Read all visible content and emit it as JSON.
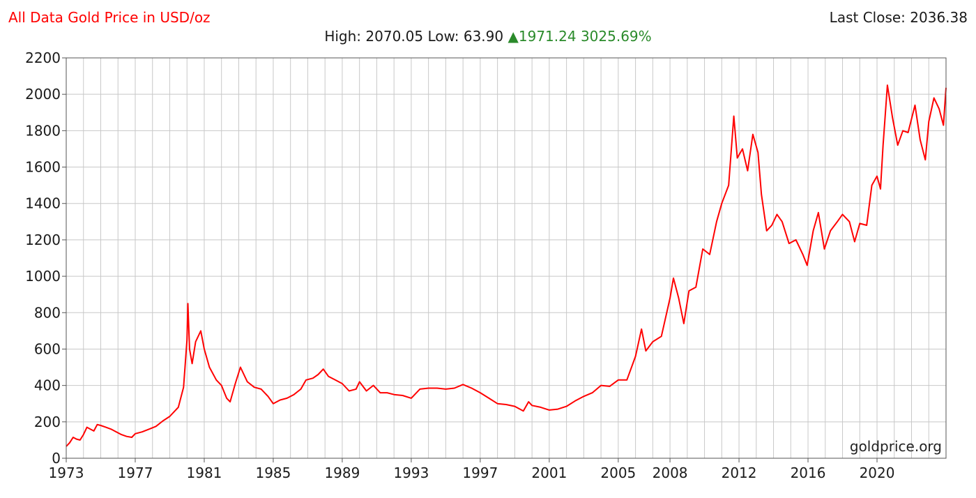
{
  "header": {
    "title": "All Data Gold Price in USD/oz",
    "last_close_label": "Last Close:",
    "last_close_value": "2036.38",
    "high_label": "High:",
    "high_value": "2070.05",
    "low_label": "Low:",
    "low_value": "63.90",
    "change_value": "1971.24",
    "change_percent": "3025.69%"
  },
  "colors": {
    "line": "#ff0000",
    "title": "#ff0000",
    "change": "#2a8a2a",
    "grid": "#c8c8c8",
    "axis": "#555555"
  },
  "chart_data": {
    "type": "line",
    "title": "All Data Gold Price in USD/oz",
    "xlabel": "",
    "ylabel": "",
    "xlim": [
      1973,
      2024
    ],
    "ylim": [
      0,
      2200
    ],
    "grid": true,
    "yticks": [
      0,
      200,
      400,
      600,
      800,
      1000,
      1200,
      1400,
      1600,
      1800,
      2000,
      2200
    ],
    "xtick_labels": [
      {
        "value": 1973,
        "label": "1973"
      },
      {
        "value": 1977,
        "label": "1977"
      },
      {
        "value": 1981,
        "label": "1981"
      },
      {
        "value": 1985,
        "label": "1985"
      },
      {
        "value": 1989,
        "label": "1989"
      },
      {
        "value": 1993,
        "label": "1993"
      },
      {
        "value": 1997,
        "label": "1997"
      },
      {
        "value": 2001,
        "label": "2001"
      },
      {
        "value": 2005,
        "label": "2005"
      },
      {
        "value": 2008,
        "label": "2008"
      },
      {
        "value": 2012,
        "label": "2012"
      },
      {
        "value": 2016,
        "label": "2016"
      },
      {
        "value": 2020,
        "label": "2020"
      }
    ],
    "watermark": "goldprice.org",
    "series": [
      {
        "values": [
          [
            1973.0,
            65
          ],
          [
            1973.2,
            85
          ],
          [
            1973.4,
            115
          ],
          [
            1973.6,
            105
          ],
          [
            1973.8,
            100
          ],
          [
            1974.0,
            130
          ],
          [
            1974.2,
            170
          ],
          [
            1974.4,
            160
          ],
          [
            1974.6,
            150
          ],
          [
            1974.8,
            185
          ],
          [
            1975.0,
            180
          ],
          [
            1975.3,
            170
          ],
          [
            1975.6,
            160
          ],
          [
            1975.9,
            145
          ],
          [
            1976.2,
            130
          ],
          [
            1976.5,
            120
          ],
          [
            1976.8,
            115
          ],
          [
            1977.0,
            135
          ],
          [
            1977.4,
            145
          ],
          [
            1977.8,
            160
          ],
          [
            1978.2,
            175
          ],
          [
            1978.6,
            205
          ],
          [
            1979.0,
            230
          ],
          [
            1979.5,
            280
          ],
          [
            1979.8,
            390
          ],
          [
            1980.0,
            650
          ],
          [
            1980.05,
            850
          ],
          [
            1980.15,
            600
          ],
          [
            1980.3,
            520
          ],
          [
            1980.5,
            640
          ],
          [
            1980.8,
            700
          ],
          [
            1981.0,
            600
          ],
          [
            1981.3,
            500
          ],
          [
            1981.7,
            430
          ],
          [
            1982.0,
            400
          ],
          [
            1982.3,
            330
          ],
          [
            1982.5,
            310
          ],
          [
            1982.8,
            410
          ],
          [
            1983.1,
            500
          ],
          [
            1983.5,
            420
          ],
          [
            1983.9,
            390
          ],
          [
            1984.3,
            380
          ],
          [
            1984.7,
            340
          ],
          [
            1985.0,
            300
          ],
          [
            1985.4,
            320
          ],
          [
            1985.8,
            330
          ],
          [
            1986.2,
            350
          ],
          [
            1986.6,
            380
          ],
          [
            1986.9,
            430
          ],
          [
            1987.3,
            440
          ],
          [
            1987.6,
            460
          ],
          [
            1987.9,
            490
          ],
          [
            1988.2,
            450
          ],
          [
            1988.6,
            430
          ],
          [
            1989.0,
            410
          ],
          [
            1989.4,
            370
          ],
          [
            1989.8,
            380
          ],
          [
            1990.0,
            420
          ],
          [
            1990.4,
            370
          ],
          [
            1990.8,
            400
          ],
          [
            1991.2,
            360
          ],
          [
            1991.6,
            360
          ],
          [
            1992.0,
            350
          ],
          [
            1992.5,
            345
          ],
          [
            1993.0,
            330
          ],
          [
            1993.5,
            380
          ],
          [
            1994.0,
            385
          ],
          [
            1994.5,
            385
          ],
          [
            1995.0,
            380
          ],
          [
            1995.5,
            385
          ],
          [
            1996.0,
            405
          ],
          [
            1996.5,
            385
          ],
          [
            1997.0,
            360
          ],
          [
            1997.5,
            330
          ],
          [
            1998.0,
            300
          ],
          [
            1998.5,
            295
          ],
          [
            1999.0,
            285
          ],
          [
            1999.5,
            260
          ],
          [
            1999.8,
            310
          ],
          [
            2000.0,
            290
          ],
          [
            2000.5,
            280
          ],
          [
            2001.0,
            265
          ],
          [
            2001.5,
            270
          ],
          [
            2002.0,
            285
          ],
          [
            2002.5,
            315
          ],
          [
            2003.0,
            340
          ],
          [
            2003.5,
            360
          ],
          [
            2004.0,
            400
          ],
          [
            2004.5,
            395
          ],
          [
            2005.0,
            430
          ],
          [
            2005.5,
            430
          ],
          [
            2006.0,
            560
          ],
          [
            2006.35,
            710
          ],
          [
            2006.6,
            590
          ],
          [
            2007.0,
            640
          ],
          [
            2007.5,
            670
          ],
          [
            2008.0,
            880
          ],
          [
            2008.2,
            990
          ],
          [
            2008.5,
            880
          ],
          [
            2008.8,
            740
          ],
          [
            2009.1,
            920
          ],
          [
            2009.5,
            940
          ],
          [
            2009.9,
            1150
          ],
          [
            2010.3,
            1120
          ],
          [
            2010.7,
            1300
          ],
          [
            2011.0,
            1400
          ],
          [
            2011.4,
            1500
          ],
          [
            2011.7,
            1880
          ],
          [
            2011.9,
            1650
          ],
          [
            2012.2,
            1700
          ],
          [
            2012.5,
            1580
          ],
          [
            2012.8,
            1780
          ],
          [
            2013.1,
            1680
          ],
          [
            2013.3,
            1450
          ],
          [
            2013.6,
            1250
          ],
          [
            2013.9,
            1280
          ],
          [
            2014.2,
            1340
          ],
          [
            2014.5,
            1300
          ],
          [
            2014.9,
            1180
          ],
          [
            2015.3,
            1200
          ],
          [
            2015.7,
            1120
          ],
          [
            2015.95,
            1060
          ],
          [
            2016.3,
            1250
          ],
          [
            2016.6,
            1350
          ],
          [
            2016.95,
            1150
          ],
          [
            2017.3,
            1250
          ],
          [
            2017.7,
            1300
          ],
          [
            2018.0,
            1340
          ],
          [
            2018.4,
            1300
          ],
          [
            2018.7,
            1190
          ],
          [
            2019.0,
            1290
          ],
          [
            2019.4,
            1280
          ],
          [
            2019.7,
            1500
          ],
          [
            2020.0,
            1550
          ],
          [
            2020.2,
            1480
          ],
          [
            2020.35,
            1720
          ],
          [
            2020.6,
            2050
          ],
          [
            2020.9,
            1870
          ],
          [
            2021.2,
            1720
          ],
          [
            2021.5,
            1800
          ],
          [
            2021.8,
            1790
          ],
          [
            2022.2,
            1940
          ],
          [
            2022.5,
            1750
          ],
          [
            2022.8,
            1640
          ],
          [
            2023.0,
            1850
          ],
          [
            2023.3,
            1980
          ],
          [
            2023.6,
            1920
          ],
          [
            2023.85,
            1830
          ],
          [
            2024.0,
            2036
          ]
        ]
      }
    ]
  }
}
